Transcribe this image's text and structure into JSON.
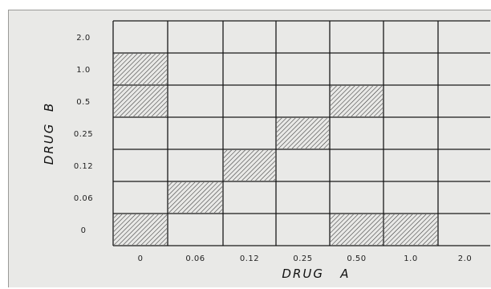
{
  "chart_data": {
    "type": "heatmap",
    "title": "",
    "xlabel": "DRUG   A",
    "ylabel": "DRUG  B",
    "x_categories": [
      "0",
      "0.06",
      "0.12",
      "0.25",
      "0.50",
      "1.0",
      "2.0"
    ],
    "y_categories": [
      "2.0",
      "1.0",
      "0.5",
      "0.25",
      "0.12",
      "0.06",
      "0"
    ],
    "cells": [
      {
        "x": "0",
        "y": "1.0",
        "shaded": true
      },
      {
        "x": "0",
        "y": "0.5",
        "shaded": true
      },
      {
        "x": "0.50",
        "y": "0.5",
        "shaded": true
      },
      {
        "x": "0.25",
        "y": "0.25",
        "shaded": true
      },
      {
        "x": "0.12",
        "y": "0.12",
        "shaded": true
      },
      {
        "x": "0.06",
        "y": "0.06",
        "shaded": true
      },
      {
        "x": "0",
        "y": "0",
        "shaded": true
      },
      {
        "x": "0.50",
        "y": "0",
        "shaded": true
      },
      {
        "x": "1.0",
        "y": "0",
        "shaded": true
      }
    ],
    "grid": true,
    "legend": "none"
  },
  "colors": {
    "background": "#e9e9e7",
    "grid_line": "#1a1a1a",
    "hatch": "#333333"
  }
}
